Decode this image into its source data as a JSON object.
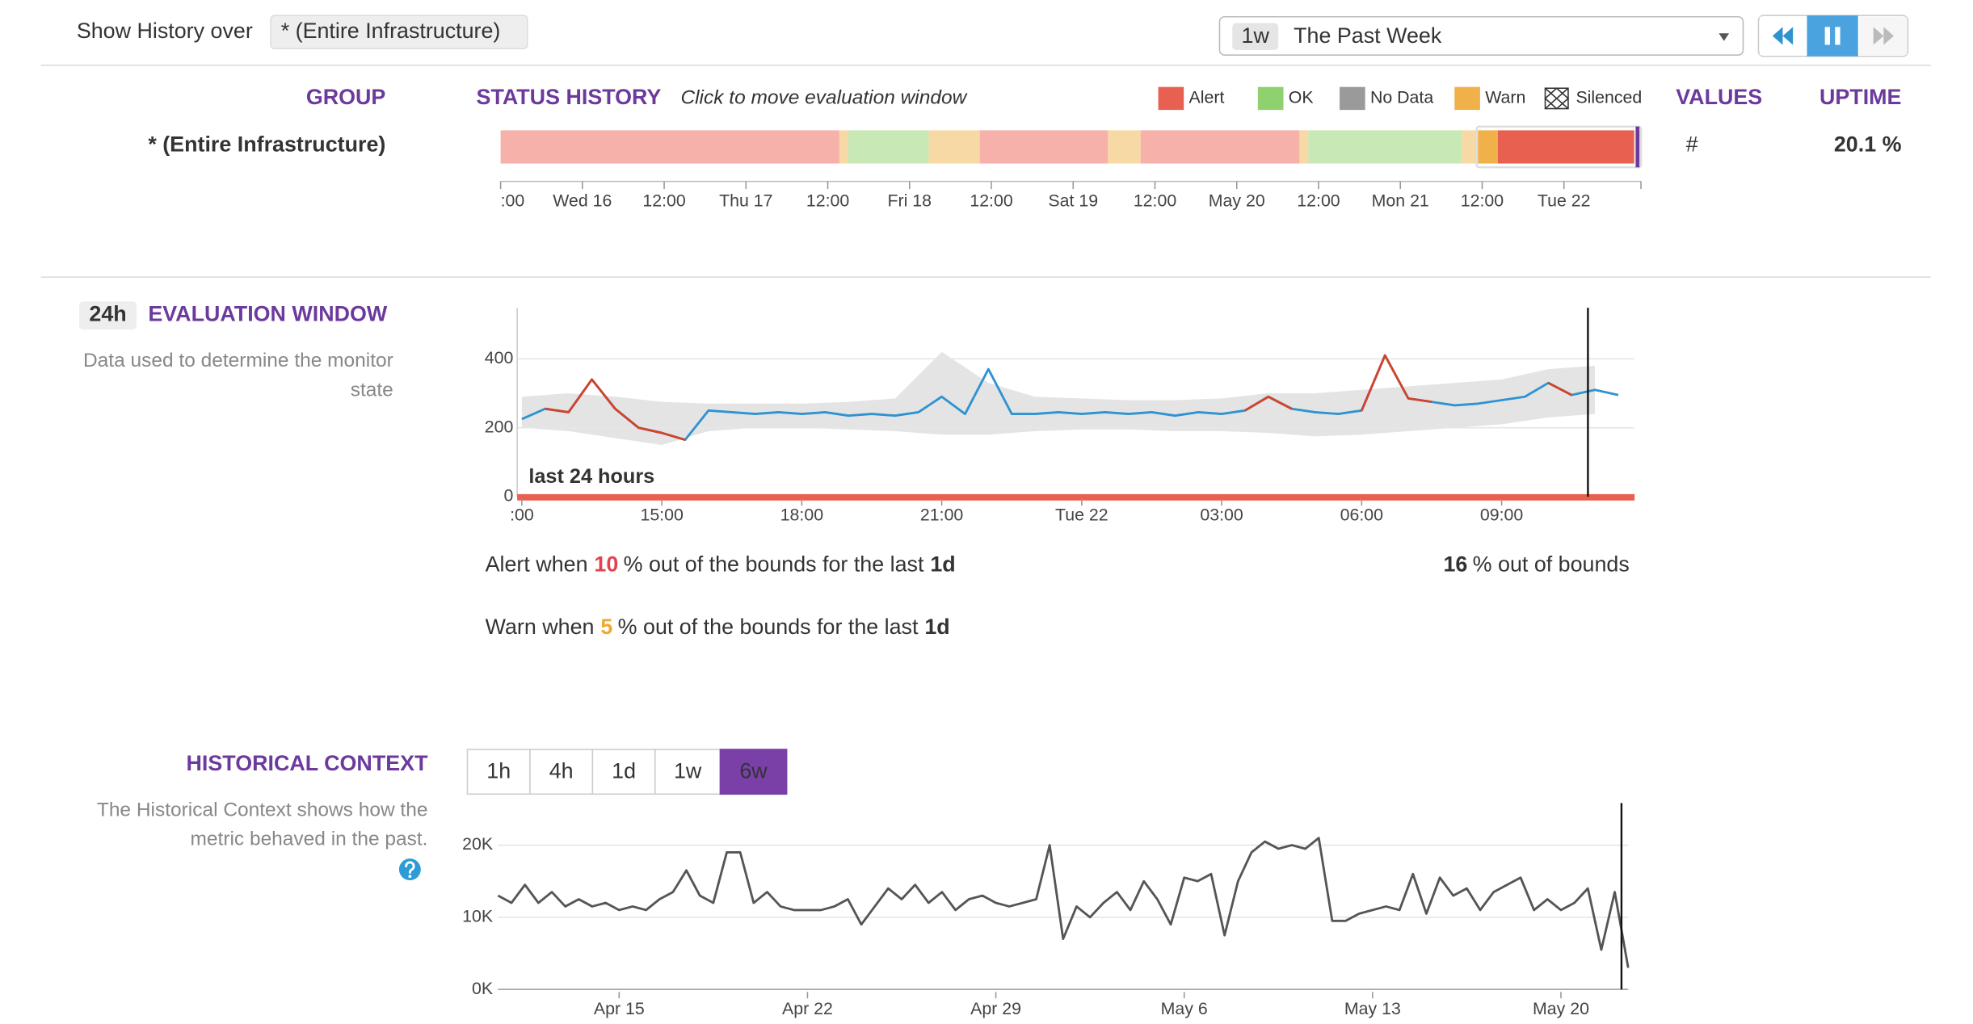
{
  "header": {
    "label": "Show History over",
    "scope": "* (Entire Infrastructure)",
    "range_badge": "1w",
    "range_label": "The Past Week"
  },
  "status_history": {
    "columns": {
      "group": "GROUP",
      "status": "STATUS HISTORY",
      "hint": "Click to move evaluation window",
      "values": "VALUES",
      "uptime": "UPTIME"
    },
    "legend": [
      {
        "name": "Alert",
        "color": "#e8604f"
      },
      {
        "name": "OK",
        "color": "#8fd16f"
      },
      {
        "name": "No Data",
        "color": "#9a9a9a"
      },
      {
        "name": "Warn",
        "color": "#f0b04a"
      },
      {
        "name": "Silenced"
      }
    ],
    "row": {
      "group": "* (Entire Infrastructure)",
      "values": "#",
      "uptime": "20.1 %"
    },
    "timeline": {
      "type": "timeline",
      "xlim": [
        0,
        167.3
      ],
      "xticks": [
        {
          "value": 0,
          "label": ":00"
        },
        {
          "value": 12,
          "label": "Wed 16"
        },
        {
          "value": 24,
          "label": "12:00"
        },
        {
          "value": 36,
          "label": "Thu 17"
        },
        {
          "value": 48,
          "label": "12:00"
        },
        {
          "value": 60,
          "label": "Fri 18"
        },
        {
          "value": 72,
          "label": "12:00"
        },
        {
          "value": 84,
          "label": "Sat 19"
        },
        {
          "value": 96,
          "label": "12:00"
        },
        {
          "value": 108,
          "label": "May 20"
        },
        {
          "value": 120,
          "label": "12:00"
        },
        {
          "value": 132,
          "label": "Mon 21"
        },
        {
          "value": 144,
          "label": "12:00"
        },
        {
          "value": 156,
          "label": "Tue 22"
        }
      ],
      "segments": [
        {
          "start": 0,
          "end": 49.7,
          "color": "#f5b1aa"
        },
        {
          "start": 49.7,
          "end": 51,
          "color": "#f7d9a5"
        },
        {
          "start": 51,
          "end": 62.8,
          "color": "#c8e8b6"
        },
        {
          "start": 62.8,
          "end": 70.3,
          "color": "#f7d9a5"
        },
        {
          "start": 70.3,
          "end": 89.1,
          "color": "#f5b1aa"
        },
        {
          "start": 89.1,
          "end": 93.9,
          "color": "#f7d9a5"
        },
        {
          "start": 93.9,
          "end": 117.2,
          "color": "#f5b1aa"
        },
        {
          "start": 117.2,
          "end": 118.5,
          "color": "#f7d9a5"
        },
        {
          "start": 118.5,
          "end": 141,
          "color": "#c8e8b6"
        },
        {
          "start": 141,
          "end": 143.4,
          "color": "#f7d9a5"
        },
        {
          "start": 143.4,
          "end": 146.3,
          "color": "#f0b04a"
        },
        {
          "start": 146.3,
          "end": 166.3,
          "color": "#e8604f"
        }
      ],
      "window": [
        143.2,
        167.3
      ],
      "marker": 166.8,
      "marker_color": "#6c3a9c"
    }
  },
  "evaluation_window": {
    "badge": "24h",
    "title": "EVALUATION WINDOW",
    "description": [
      "Data used to determine the monitor",
      "state"
    ],
    "chart_data": {
      "type": "line",
      "xlim": [
        -0.1,
        23.85
      ],
      "ylim": [
        0,
        548
      ],
      "yticks": [
        0,
        200,
        400
      ],
      "grid": true,
      "xticks": [
        {
          "value": 0,
          "label": ":00"
        },
        {
          "value": 3,
          "label": "15:00"
        },
        {
          "value": 6,
          "label": "18:00"
        },
        {
          "value": 9,
          "label": "21:00"
        },
        {
          "value": 12,
          "label": "Tue 22"
        },
        {
          "value": 15,
          "label": "03:00"
        },
        {
          "value": 18,
          "label": "06:00"
        },
        {
          "value": 21,
          "label": "09:00"
        }
      ],
      "x": [
        0,
        0.5,
        1,
        1.5,
        2,
        2.5,
        3,
        3.5,
        4,
        4.5,
        5,
        5.5,
        6,
        6.5,
        7,
        7.5,
        8,
        8.5,
        9,
        9.5,
        10,
        10.5,
        11,
        11.5,
        12,
        12.5,
        13,
        13.5,
        14,
        14.5,
        15,
        15.5,
        16,
        16.5,
        17,
        17.5,
        18,
        18.5,
        19,
        19.5,
        20,
        20.5,
        21,
        21.5,
        22,
        22.5,
        23,
        23.5
      ],
      "values": [
        225,
        255,
        245,
        340,
        255,
        200,
        185,
        165,
        250,
        245,
        240,
        245,
        240,
        245,
        235,
        240,
        235,
        245,
        290,
        240,
        370,
        240,
        240,
        245,
        240,
        245,
        240,
        245,
        235,
        245,
        240,
        250,
        290,
        255,
        245,
        240,
        250,
        410,
        285,
        275,
        265,
        270,
        280,
        290,
        330,
        295,
        310,
        295
      ],
      "color": "#2e93d1",
      "alert_color": "#d0432c",
      "alert_periods": [
        {
          "start": 0.5,
          "end": 3.5
        },
        {
          "start": 15.5,
          "end": 16.5
        },
        {
          "start": 18,
          "end": 19.5
        },
        {
          "start": 22,
          "end": 22.5
        }
      ],
      "band": {
        "x": [
          0,
          1,
          2,
          3,
          4,
          5,
          6,
          7,
          8,
          9,
          10,
          11,
          12,
          13,
          14,
          15,
          16,
          17,
          18,
          19,
          20,
          21,
          22,
          23
        ],
        "upper": [
          290,
          300,
          290,
          275,
          270,
          270,
          270,
          275,
          285,
          420,
          330,
          290,
          285,
          280,
          280,
          285,
          300,
          300,
          310,
          320,
          330,
          340,
          370,
          380
        ],
        "lower": [
          200,
          190,
          170,
          150,
          190,
          200,
          200,
          195,
          190,
          180,
          180,
          190,
          195,
          195,
          190,
          190,
          185,
          175,
          180,
          190,
          200,
          210,
          230,
          240
        ],
        "color": "#e4e4e4"
      },
      "baseline_color": "#e8604f",
      "annotation": "last 24 hours",
      "cursor": 22.85
    },
    "alert_rule": {
      "text": "Alert when",
      "threshold": 10,
      "suffix": "% out of the bounds for the last",
      "period": "1d",
      "color": "#e0454f"
    },
    "status": {
      "value": 16,
      "suffix": "% out of bounds"
    },
    "warn_rule": {
      "text": "Warn when",
      "threshold": 5,
      "suffix": "% out of the bounds for the last",
      "period": "1d",
      "color": "#f0a830"
    }
  },
  "historical_context": {
    "title": "HISTORICAL CONTEXT",
    "description": [
      "The Historical Context shows how the",
      "metric behaved in the past."
    ],
    "buttons": [
      {
        "label": "1h",
        "active": false
      },
      {
        "label": "4h",
        "active": false
      },
      {
        "label": "1d",
        "active": false
      },
      {
        "label": "1w",
        "active": false
      },
      {
        "label": "6w",
        "active": true
      }
    ],
    "chart_data": {
      "type": "line",
      "xlim": [
        -4.5,
        37.5
      ],
      "ylim": [
        0,
        25840
      ],
      "grid": true,
      "yticks": [
        {
          "value": 0,
          "label": "0K"
        },
        {
          "value": 10000,
          "label": "10K"
        },
        {
          "value": 20000,
          "label": "20K"
        }
      ],
      "xticks": [
        {
          "value": 0,
          "label": "Apr 15"
        },
        {
          "value": 7,
          "label": "Apr 22"
        },
        {
          "value": 14,
          "label": "Apr 29"
        },
        {
          "value": 21,
          "label": "May 6"
        },
        {
          "value": 28,
          "label": "May 13"
        },
        {
          "value": 35,
          "label": "May 20"
        }
      ],
      "x": [
        -4.5,
        -4,
        -3.5,
        -3,
        -2.5,
        -2,
        -1.5,
        -1,
        -0.5,
        0,
        0.5,
        1,
        1.5,
        2,
        2.5,
        3,
        3.5,
        4,
        4.5,
        5,
        5.5,
        6,
        6.5,
        7,
        7.5,
        8,
        8.5,
        9,
        9.5,
        10,
        10.5,
        11,
        11.5,
        12,
        12.5,
        13,
        13.5,
        14,
        14.5,
        15,
        15.5,
        16,
        16.5,
        17,
        17.5,
        18,
        18.5,
        19,
        19.5,
        20,
        20.5,
        21,
        21.5,
        22,
        22.5,
        23,
        23.5,
        24,
        24.5,
        25,
        25.5,
        26,
        26.5,
        27,
        27.5,
        28,
        28.5,
        29,
        29.5,
        30,
        30.5,
        31,
        31.5,
        32,
        32.5,
        33,
        33.5,
        34,
        34.5,
        35,
        35.5,
        36,
        36.5,
        37,
        37.5
      ],
      "values": [
        13000,
        12000,
        14500,
        12000,
        13500,
        11500,
        12500,
        11500,
        12000,
        11000,
        11500,
        11000,
        12500,
        13500,
        16500,
        13000,
        12000,
        19000,
        19000,
        12000,
        13500,
        11500,
        11000,
        11000,
        11000,
        11500,
        12500,
        9000,
        11500,
        14000,
        12500,
        14500,
        12000,
        13500,
        11000,
        12500,
        13000,
        12000,
        11500,
        12000,
        12500,
        20000,
        7000,
        11500,
        10000,
        12000,
        13500,
        11000,
        15000,
        12500,
        9000,
        15500,
        15000,
        16000,
        7500,
        15000,
        19000,
        20500,
        19500,
        20000,
        19500,
        21000,
        9500,
        9500,
        10500,
        11000,
        11500,
        11000,
        16000,
        10500,
        15500,
        13000,
        14000,
        11000,
        13500,
        14500,
        15500,
        11000,
        12500,
        11000,
        12000,
        14000,
        5500,
        13500,
        3000
      ],
      "color": "#555555",
      "cursor": 37.25
    }
  }
}
